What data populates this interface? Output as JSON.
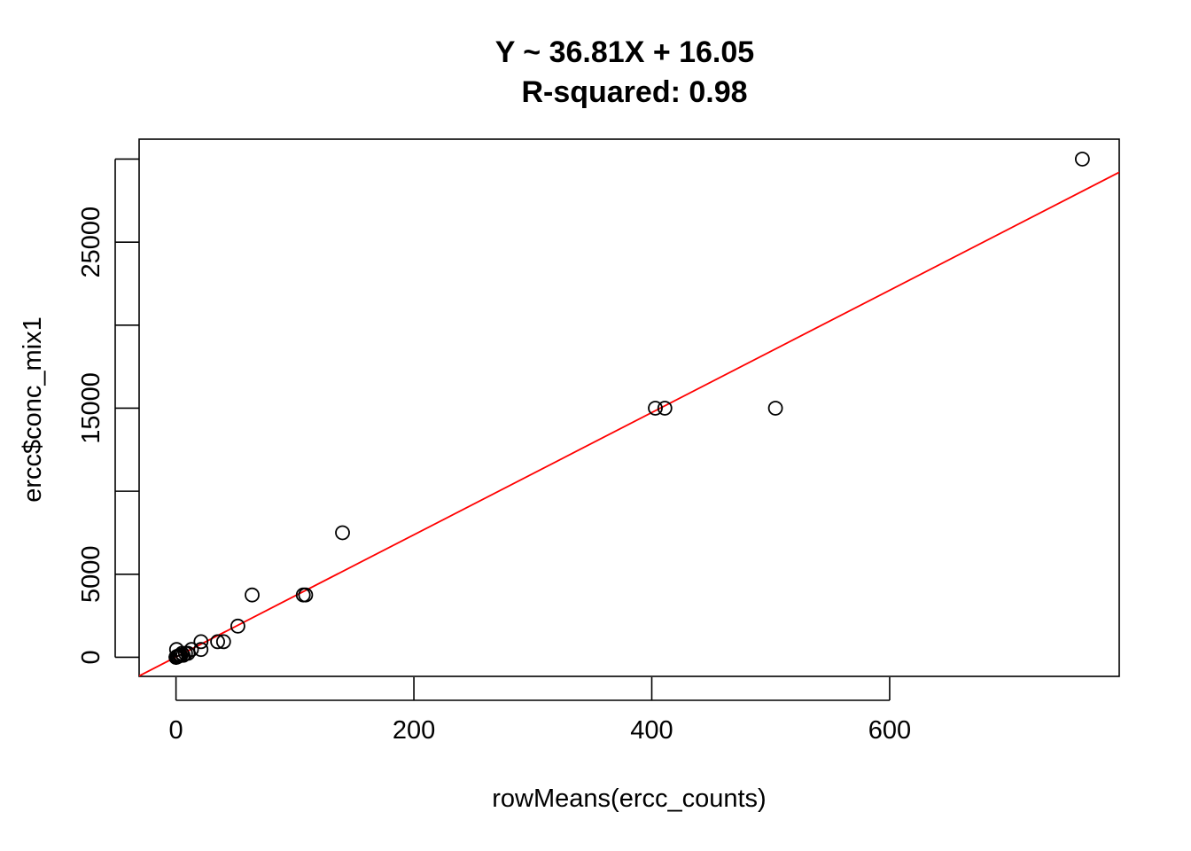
{
  "chart_data": {
    "type": "scatter",
    "title_line1": "Y ~ 36.81X + 16.05",
    "title_line2": "R-squared: 0.98",
    "xlabel": "rowMeans(ercc_counts)",
    "ylabel": "ercc$conc_mix1",
    "xlim": [
      -31,
      793
    ],
    "ylim": [
      -1150,
      31200
    ],
    "x_ticks": [
      0,
      200,
      400,
      600
    ],
    "x_tick_labels": [
      "0",
      "200",
      "400",
      "600"
    ],
    "y_ticks": [
      0,
      5000,
      10000,
      15000,
      20000,
      25000,
      30000
    ],
    "y_tick_labels": [
      "0",
      "5000",
      "",
      "15000",
      "",
      "25000",
      ""
    ],
    "regression": {
      "slope": 36.81,
      "intercept": 16.05,
      "color": "#ff0000"
    },
    "points": [
      {
        "x": 762,
        "y": 30000
      },
      {
        "x": 504,
        "y": 15000
      },
      {
        "x": 411,
        "y": 15000
      },
      {
        "x": 403,
        "y": 15000
      },
      {
        "x": 140,
        "y": 7500
      },
      {
        "x": 64,
        "y": 3750
      },
      {
        "x": 109,
        "y": 3750
      },
      {
        "x": 107,
        "y": 3750
      },
      {
        "x": 52,
        "y": 1875
      },
      {
        "x": 40,
        "y": 938
      },
      {
        "x": 35,
        "y": 938
      },
      {
        "x": 21,
        "y": 938
      },
      {
        "x": 21,
        "y": 469
      },
      {
        "x": 13,
        "y": 469
      },
      {
        "x": 0.5,
        "y": 469
      },
      {
        "x": 10,
        "y": 234
      },
      {
        "x": 8,
        "y": 234
      },
      {
        "x": 5,
        "y": 234
      },
      {
        "x": 6,
        "y": 117
      },
      {
        "x": 4,
        "y": 117
      },
      {
        "x": 3,
        "y": 117
      },
      {
        "x": 2,
        "y": 59
      },
      {
        "x": 1,
        "y": 59
      },
      {
        "x": 1,
        "y": 29
      },
      {
        "x": 0.5,
        "y": 15
      },
      {
        "x": 0.3,
        "y": 15
      },
      {
        "x": 0.2,
        "y": 7
      },
      {
        "x": 0.1,
        "y": 4
      },
      {
        "x": 0.1,
        "y": 2
      },
      {
        "x": 0,
        "y": 1
      }
    ]
  }
}
